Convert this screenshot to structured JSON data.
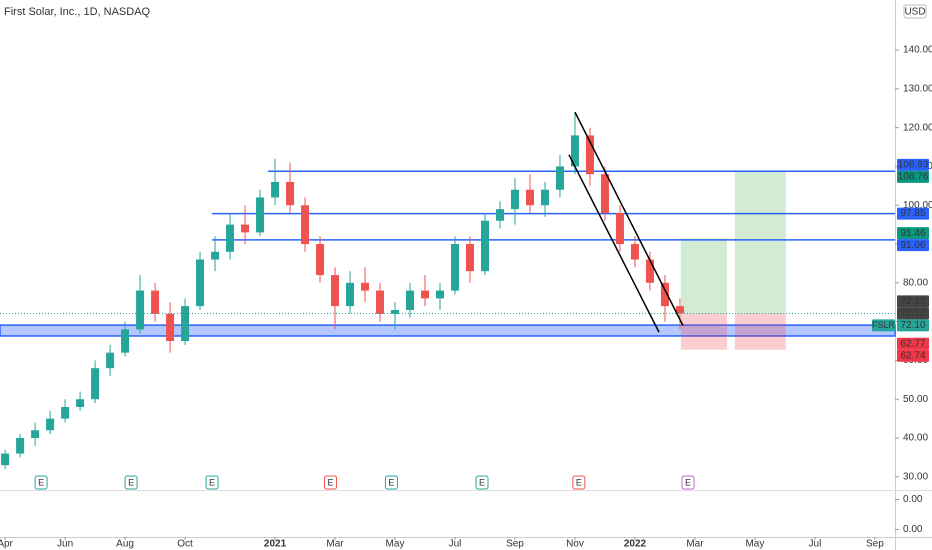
{
  "chart_data": {
    "type": "candlestick",
    "title": "First Solar, Inc., 1D, NASDAQ",
    "currency": "USD",
    "up_color": "#26a69a",
    "down_color": "#ef5350",
    "grid": false,
    "x": [
      0,
      0.5,
      1,
      1.5,
      2,
      2.5,
      3,
      3.5,
      4,
      4.5,
      5,
      5.5,
      6,
      6.5,
      7,
      7.5,
      8,
      8.5,
      9,
      9.5,
      10,
      10.5,
      11,
      11.5,
      12,
      12.5,
      13,
      13.5,
      14,
      14.5,
      15,
      15.5,
      16,
      16.5,
      17,
      17.5,
      18,
      18.5,
      19,
      19.5,
      20,
      20.5,
      21,
      21.5,
      22,
      22.5
    ],
    "open": [
      33,
      36,
      40,
      42,
      45,
      48,
      50,
      58,
      62,
      68,
      78,
      72,
      65,
      74,
      86,
      88,
      95,
      93,
      102,
      106,
      100,
      90,
      82,
      74,
      80,
      78,
      72,
      73,
      78,
      76,
      78,
      90,
      83,
      96,
      99,
      104,
      100,
      104,
      110,
      118,
      108,
      98,
      90,
      86,
      80,
      74
    ],
    "high": [
      37,
      41,
      44,
      47,
      50,
      52,
      60,
      64,
      70,
      82,
      80,
      75,
      76,
      88,
      92,
      98,
      100,
      104,
      112,
      111,
      102,
      92,
      84,
      83,
      84,
      80,
      75,
      80,
      82,
      80,
      92,
      92,
      98,
      101,
      107,
      108,
      106,
      113,
      124,
      120,
      110,
      100,
      92,
      88,
      82,
      76
    ],
    "low": [
      32,
      35,
      38,
      41,
      44,
      47,
      49,
      56,
      61,
      67,
      70,
      62,
      64,
      73,
      83,
      86,
      90,
      92,
      100,
      98,
      88,
      80,
      68,
      72,
      75,
      70,
      68,
      71,
      74,
      73,
      77,
      80,
      82,
      94,
      95,
      98,
      97,
      102,
      108,
      105,
      96,
      88,
      84,
      78,
      70,
      68
    ],
    "close": [
      36,
      40,
      42,
      45,
      48,
      50,
      58,
      62,
      68,
      78,
      72,
      65,
      74,
      86,
      88,
      95,
      93,
      102,
      106,
      100,
      90,
      82,
      74,
      80,
      78,
      72,
      73,
      78,
      76,
      78,
      90,
      83,
      96,
      99,
      104,
      100,
      104,
      110,
      118,
      108,
      98,
      90,
      86,
      80,
      74,
      72.1
    ],
    "xlim": [
      -0.17,
      29.67
    ],
    "xticks": [
      {
        "value": 0,
        "label": "Apr"
      },
      {
        "value": 2,
        "label": "Jun"
      },
      {
        "value": 4,
        "label": "Aug"
      },
      {
        "value": 6,
        "label": "Oct"
      },
      {
        "value": 9,
        "label": "2021"
      },
      {
        "value": 11,
        "label": "Mar"
      },
      {
        "value": 13,
        "label": "May"
      },
      {
        "value": 15,
        "label": "Jul"
      },
      {
        "value": 17,
        "label": "Sep"
      },
      {
        "value": 19,
        "label": "Nov"
      },
      {
        "value": 21,
        "label": "2022"
      },
      {
        "value": 23,
        "label": "Mar"
      },
      {
        "value": 25,
        "label": "May"
      },
      {
        "value": 27,
        "label": "Jul"
      },
      {
        "value": 29,
        "label": "Sep"
      }
    ],
    "ylim": [
      26.6,
      152.9
    ],
    "yticks": [
      {
        "value": 30,
        "label": "30.00"
      },
      {
        "value": 40,
        "label": "40.00"
      },
      {
        "value": 50,
        "label": "50.00"
      },
      {
        "value": 60,
        "label": "60.00"
      },
      {
        "value": 70,
        "label": "70.00"
      },
      {
        "value": 80,
        "label": "80.00"
      },
      {
        "value": 90,
        "label": "90.00"
      },
      {
        "value": 100,
        "label": "100.00"
      },
      {
        "value": 110,
        "label": "110.00"
      },
      {
        "value": 120,
        "label": "120.00"
      },
      {
        "value": 130,
        "label": "130.00"
      },
      {
        "value": 140,
        "label": "140.00"
      }
    ],
    "pane_ylim": [
      -0.0005,
      0.0025
    ],
    "pane_yticks": [
      {
        "value": 0.002,
        "label": "0.00"
      },
      {
        "value": 0,
        "label": "0.00"
      }
    ],
    "level_color": "#2962ff",
    "levels": [
      {
        "value": 108.76,
        "x_start": 8.77
      },
      {
        "value": 97.85,
        "x_start": 6.9
      },
      {
        "value": 91.06,
        "x_start": 6.9
      }
    ],
    "zone": {
      "low": 66.3,
      "high": 69.1
    },
    "trendlines": [
      {
        "x": [
          19,
          22.6
        ],
        "y": [
          124,
          69
        ]
      },
      {
        "x": [
          18.8,
          21.8
        ],
        "y": [
          113,
          67.3
        ]
      }
    ],
    "positions": [
      {
        "x_start": 22.53,
        "x_end": 24.07,
        "entry": 72.12,
        "target": 91.46,
        "stop": 62.77
      },
      {
        "x_start": 24.33,
        "x_end": 26.03,
        "entry": 72.12,
        "target": 108.76,
        "stop": 62.74
      }
    ],
    "earnings": [
      {
        "x": 1.2,
        "label": "E",
        "color": "#26a69a"
      },
      {
        "x": 4.2,
        "label": "E",
        "color": "#26a69a"
      },
      {
        "x": 6.9,
        "label": "E",
        "color": "#26a69a"
      },
      {
        "x": 10.85,
        "label": "E",
        "color": "#ef5350"
      },
      {
        "x": 12.88,
        "label": "E",
        "color": "#26a69a"
      },
      {
        "x": 15.9,
        "label": "E",
        "color": "#26a69a"
      },
      {
        "x": 19.13,
        "label": "E",
        "color": "#ef5350"
      },
      {
        "x": 22.77,
        "label": "E",
        "color": "#ba68c8"
      }
    ],
    "price_tags": [
      {
        "value": 108.93,
        "label": "108.93",
        "color": "#2962ff"
      },
      {
        "value": 108.76,
        "label": "108.76",
        "color": "#089981"
      },
      {
        "value": 97.85,
        "label": "97.85",
        "color": "#2962ff"
      },
      {
        "value": 91.46,
        "label": "91.46",
        "color": "#089981"
      },
      {
        "value": 91.06,
        "label": "91.06",
        "color": "#2962ff"
      },
      {
        "value": 72.12,
        "label": "72.12",
        "color": "#444444"
      },
      {
        "value": 72.12,
        "label": "72.12",
        "color": "#444444"
      },
      {
        "value": 72.1,
        "label": "72.10",
        "color": "#26a69a",
        "name": "FSLR",
        "dotted": true
      },
      {
        "value": 62.77,
        "label": "62.77",
        "color": "#f23645"
      },
      {
        "value": 62.74,
        "label": "62.74",
        "color": "#f23645"
      }
    ]
  }
}
